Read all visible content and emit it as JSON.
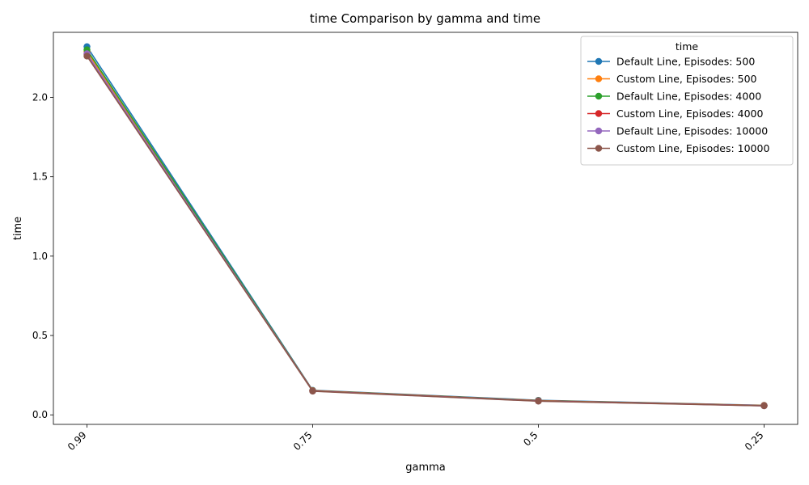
{
  "chart_data": {
    "type": "line",
    "title": "time Comparison by gamma and time",
    "xlabel": "gamma",
    "ylabel": "time",
    "categories": [
      "0.99",
      "0.75",
      "0.5",
      "0.25"
    ],
    "ylim": [
      -0.06,
      2.41
    ],
    "yticks": [
      0.0,
      0.5,
      1.0,
      1.5,
      2.0
    ],
    "ytick_labels": [
      "0.0",
      "0.5",
      "1.0",
      "1.5",
      "2.0"
    ],
    "xtick_rotation": 45,
    "grid": false,
    "legend": {
      "title": "time",
      "placement": "top-right"
    },
    "series": [
      {
        "name": "Default Line, Episodes: 500",
        "color": "#1f77b4",
        "marker": "circle",
        "values": [
          2.32,
          0.155,
          0.092,
          0.06
        ]
      },
      {
        "name": "Custom Line, Episodes: 500",
        "color": "#ff7f0e",
        "marker": "circle",
        "values": [
          2.29,
          0.153,
          0.09,
          0.059
        ]
      },
      {
        "name": "Default Line, Episodes: 4000",
        "color": "#2ca02c",
        "marker": "circle",
        "values": [
          2.3,
          0.152,
          0.089,
          0.058
        ]
      },
      {
        "name": "Custom Line, Episodes: 4000",
        "color": "#d62728",
        "marker": "circle",
        "values": [
          2.27,
          0.151,
          0.088,
          0.058
        ]
      },
      {
        "name": "Default Line, Episodes: 10000",
        "color": "#9467bd",
        "marker": "circle",
        "values": [
          2.275,
          0.15,
          0.087,
          0.057
        ]
      },
      {
        "name": "Custom Line, Episodes: 10000",
        "color": "#8c564b",
        "marker": "circle",
        "values": [
          2.26,
          0.149,
          0.086,
          0.057
        ]
      }
    ]
  }
}
